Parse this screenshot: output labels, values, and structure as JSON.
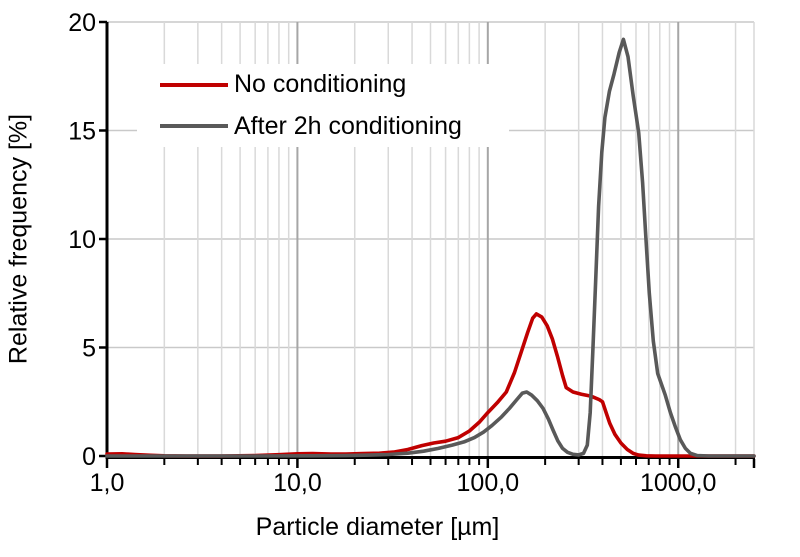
{
  "chart_data": {
    "type": "line",
    "title": "",
    "xlabel": "Particle diameter [µm]",
    "ylabel": "Relative frequency [%]",
    "x_axis": {
      "type": "log",
      "min": 1,
      "max": 2500,
      "major_ticks": [
        1,
        10,
        100,
        1000
      ],
      "tick_labels": [
        "1,0",
        "10,0",
        "100,0",
        "1000,0"
      ],
      "minor_tick_steps": [
        2,
        3,
        4,
        5,
        6,
        7,
        8,
        9
      ]
    },
    "y_axis": {
      "min": 0,
      "max": 20,
      "ticks": [
        0,
        5,
        10,
        15,
        20
      ],
      "tick_labels": [
        "0",
        "5",
        "10",
        "15",
        "20"
      ]
    },
    "grid": {
      "horizontal": true,
      "vertical_minor": true,
      "vertical_major": true
    },
    "legend_position": "top-left-inside",
    "series": [
      {
        "name": "No conditioning",
        "color": "#c00000",
        "points": [
          [
            1.0,
            0.09
          ],
          [
            1.2,
            0.1
          ],
          [
            1.4,
            0.07
          ],
          [
            1.7,
            0.03
          ],
          [
            2.0,
            0.01
          ],
          [
            2.6,
            0
          ],
          [
            4,
            0
          ],
          [
            6,
            0.02
          ],
          [
            8,
            0.06
          ],
          [
            10,
            0.1
          ],
          [
            12,
            0.11
          ],
          [
            15,
            0.09
          ],
          [
            18,
            0.09
          ],
          [
            22,
            0.11
          ],
          [
            27,
            0.13
          ],
          [
            32,
            0.18
          ],
          [
            38,
            0.3
          ],
          [
            45,
            0.48
          ],
          [
            52,
            0.6
          ],
          [
            60,
            0.68
          ],
          [
            70,
            0.85
          ],
          [
            80,
            1.15
          ],
          [
            90,
            1.55
          ],
          [
            100,
            2.0
          ],
          [
            112,
            2.45
          ],
          [
            125,
            2.95
          ],
          [
            138,
            3.85
          ],
          [
            150,
            4.8
          ],
          [
            162,
            5.7
          ],
          [
            172,
            6.35
          ],
          [
            180,
            6.55
          ],
          [
            192,
            6.4
          ],
          [
            205,
            6.0
          ],
          [
            218,
            5.4
          ],
          [
            232,
            4.6
          ],
          [
            247,
            3.7
          ],
          [
            258,
            3.15
          ],
          [
            280,
            2.95
          ],
          [
            310,
            2.85
          ],
          [
            350,
            2.75
          ],
          [
            385,
            2.6
          ],
          [
            400,
            2.5
          ],
          [
            418,
            2.0
          ],
          [
            437,
            1.5
          ],
          [
            465,
            1.0
          ],
          [
            500,
            0.6
          ],
          [
            540,
            0.3
          ],
          [
            580,
            0.12
          ],
          [
            620,
            0.04
          ],
          [
            680,
            0.01
          ],
          [
            760,
            0
          ],
          [
            1200,
            0
          ],
          [
            2500,
            0
          ]
        ]
      },
      {
        "name": "After 2h conditioning",
        "color": "#595959",
        "points": [
          [
            1.0,
            0
          ],
          [
            6,
            0
          ],
          [
            12,
            0.01
          ],
          [
            18,
            0.02
          ],
          [
            24,
            0.04
          ],
          [
            30,
            0.07
          ],
          [
            38,
            0.13
          ],
          [
            46,
            0.22
          ],
          [
            55,
            0.35
          ],
          [
            65,
            0.5
          ],
          [
            75,
            0.65
          ],
          [
            85,
            0.85
          ],
          [
            95,
            1.1
          ],
          [
            105,
            1.4
          ],
          [
            118,
            1.8
          ],
          [
            130,
            2.2
          ],
          [
            142,
            2.6
          ],
          [
            152,
            2.9
          ],
          [
            160,
            2.95
          ],
          [
            170,
            2.8
          ],
          [
            182,
            2.55
          ],
          [
            195,
            2.2
          ],
          [
            208,
            1.7
          ],
          [
            220,
            1.2
          ],
          [
            233,
            0.7
          ],
          [
            247,
            0.35
          ],
          [
            262,
            0.17
          ],
          [
            280,
            0.08
          ],
          [
            300,
            0.05
          ],
          [
            318,
            0.12
          ],
          [
            333,
            0.5
          ],
          [
            345,
            2.0
          ],
          [
            356,
            4.8
          ],
          [
            368,
            8.0
          ],
          [
            382,
            11.5
          ],
          [
            397,
            14.0
          ],
          [
            412,
            15.6
          ],
          [
            435,
            16.8
          ],
          [
            460,
            17.6
          ],
          [
            490,
            18.6
          ],
          [
            515,
            19.2
          ],
          [
            545,
            18.4
          ],
          [
            580,
            16.6
          ],
          [
            620,
            14.9
          ],
          [
            650,
            12.6
          ],
          [
            675,
            10.2
          ],
          [
            705,
            7.5
          ],
          [
            740,
            5.3
          ],
          [
            780,
            3.8
          ],
          [
            855,
            2.8
          ],
          [
            910,
            2.0
          ],
          [
            965,
            1.35
          ],
          [
            1025,
            0.75
          ],
          [
            1090,
            0.35
          ],
          [
            1160,
            0.12
          ],
          [
            1260,
            0.02
          ],
          [
            1450,
            0
          ],
          [
            2000,
            0
          ],
          [
            2500,
            0
          ]
        ]
      }
    ],
    "style": {
      "background": "#ffffff",
      "axis_color": "#000000",
      "text_color": "#000000",
      "grid_horizontal_color": "#c9c9c9",
      "grid_minor_color": "#d9d9d9",
      "grid_major_color": "#a6a6a6",
      "series_stroke_width": 3.6
    }
  }
}
